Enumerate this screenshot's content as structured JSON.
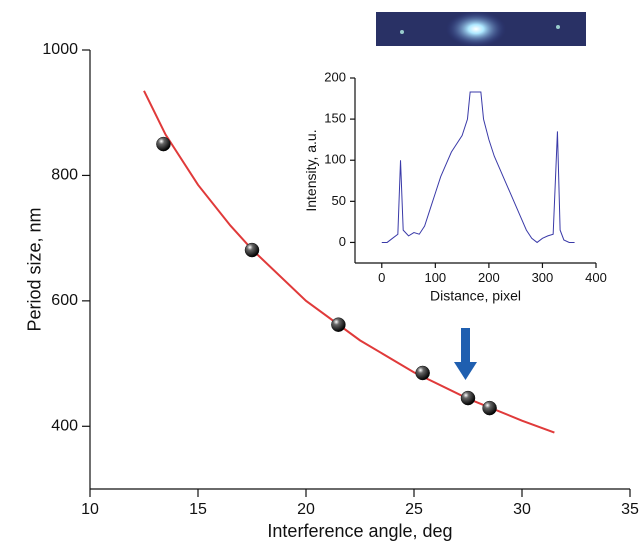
{
  "chart_data": [
    {
      "type": "scatter",
      "xlabel": "Interference angle, deg",
      "ylabel": "Period size, nm",
      "x": [
        13.4,
        17.5,
        21.5,
        25.4,
        27.5,
        28.5
      ],
      "values": [
        850,
        681,
        562,
        485,
        445,
        429
      ],
      "color": "#111111",
      "fit_x": [
        12.5,
        13.5,
        15,
        16.5,
        17.5,
        20,
        22.5,
        25,
        27.5,
        30,
        31.5
      ],
      "fit_values": [
        935,
        865,
        785,
        720,
        682,
        600,
        537,
        486,
        444,
        409,
        390
      ],
      "fit_color": "#e03a3a",
      "xlim": [
        10,
        35
      ],
      "xticks": [
        10,
        15,
        20,
        25,
        30,
        35
      ],
      "ylim": [
        300,
        1000
      ],
      "yticks": [
        400,
        600,
        800,
        1000
      ]
    },
    {
      "type": "line",
      "xlabel": "Distance, pixel",
      "ylabel": "Intensity, a.u.",
      "x": [
        0,
        10,
        20,
        30,
        35,
        40,
        50,
        60,
        70,
        80,
        90,
        100,
        110,
        120,
        130,
        140,
        150,
        160,
        165,
        175,
        185,
        190,
        200,
        210,
        220,
        230,
        240,
        250,
        260,
        270,
        280,
        290,
        300,
        310,
        320,
        328,
        333,
        340,
        350,
        360
      ],
      "values": [
        0,
        0,
        5,
        10,
        100,
        15,
        8,
        12,
        10,
        20,
        40,
        60,
        80,
        95,
        110,
        120,
        130,
        150,
        183,
        183,
        183,
        150,
        125,
        105,
        90,
        75,
        60,
        45,
        30,
        15,
        5,
        0,
        5,
        8,
        10,
        135,
        15,
        3,
        0,
        0
      ],
      "color": "#3a3aa8",
      "xlim": [
        -50,
        400
      ],
      "xticks": [
        0,
        100,
        200,
        300,
        400
      ],
      "ylim": [
        -25,
        200
      ],
      "yticks": [
        0,
        50,
        100,
        150,
        200
      ]
    }
  ]
}
